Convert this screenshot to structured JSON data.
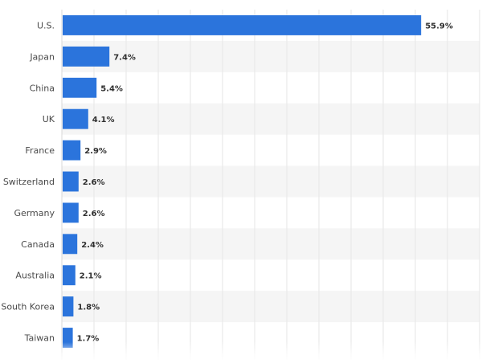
{
  "chart_data": {
    "type": "bar",
    "orientation": "horizontal",
    "categories": [
      "U.S.",
      "Japan",
      "China",
      "UK",
      "France",
      "Switzerland",
      "Germany",
      "Canada",
      "Australia",
      "South Korea",
      "Taiwan"
    ],
    "values": [
      55.9,
      7.4,
      5.4,
      4.1,
      2.9,
      2.6,
      2.6,
      2.4,
      2.1,
      1.8,
      1.7
    ],
    "value_labels": [
      "55.9%",
      "7.4%",
      "5.4%",
      "4.1%",
      "2.9%",
      "2.6%",
      "2.6%",
      "2.4%",
      "2.1%",
      "1.8%",
      "1.7%"
    ],
    "title": "",
    "xlabel": "",
    "ylabel": "",
    "xlim": [
      0,
      65
    ],
    "grid": true,
    "legend": "none",
    "colors": {
      "bar": "#2b74dc",
      "row_alt": "#f5f5f5",
      "grid": "#e6e6e6",
      "label": "#4a4a4a",
      "value_label": "#2f2f2f"
    }
  }
}
